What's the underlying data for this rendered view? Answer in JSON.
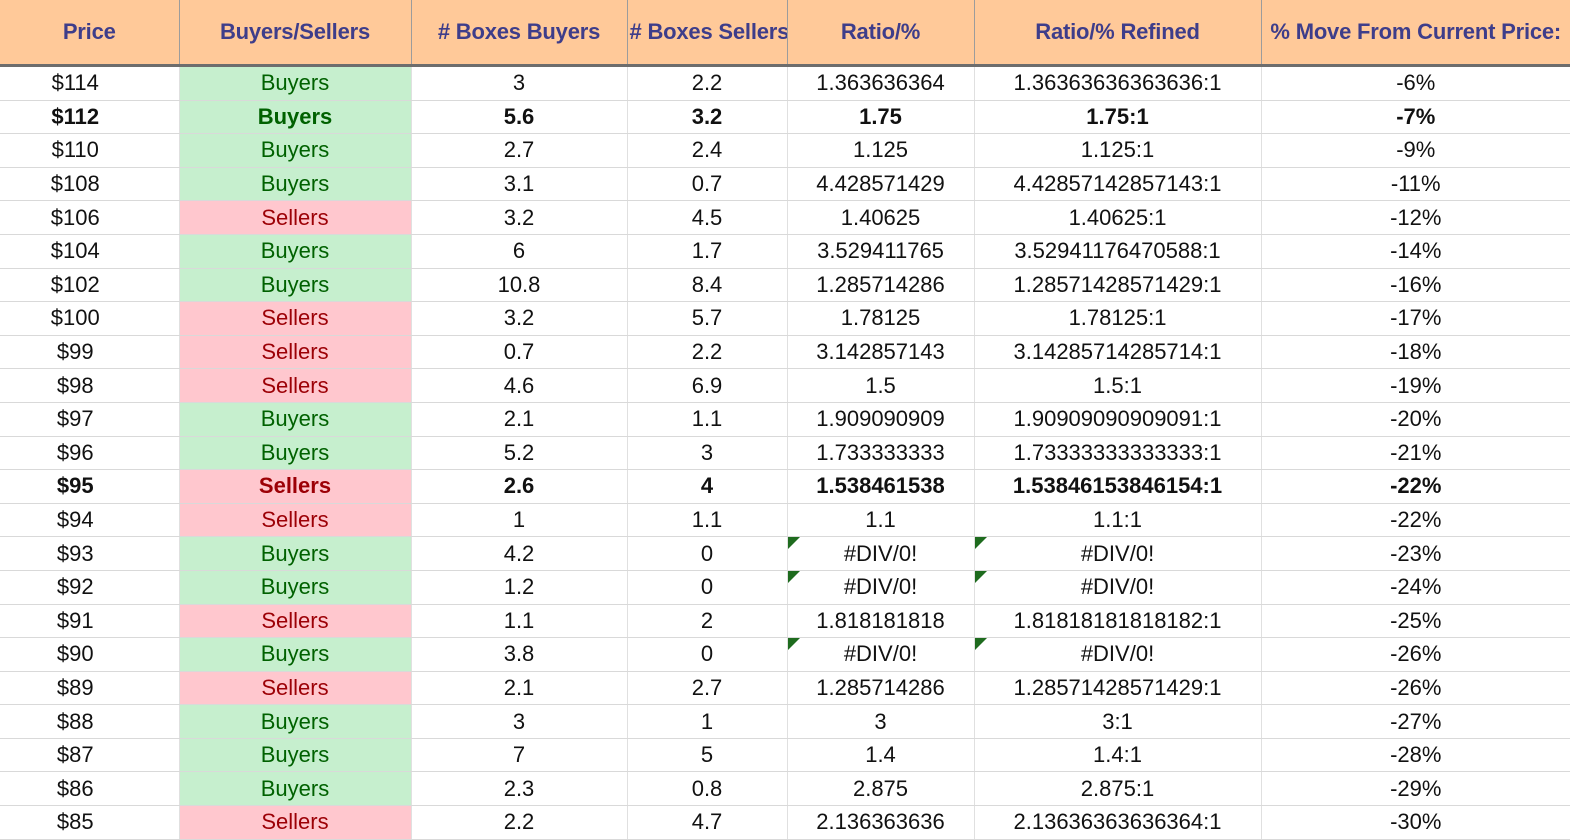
{
  "headers": [
    "Price",
    "Buyers/Sellers",
    "# Boxes Buyers",
    "# Boxes Sellers",
    "Ratio/%",
    "Ratio/% Refined",
    "% Move From Current Price:"
  ],
  "colors": {
    "header_bg": "#ffc999",
    "header_text": "#3e3d8a",
    "buyers_bg": "#c6efce",
    "buyers_text": "#006100",
    "sellers_bg": "#ffc7ce",
    "sellers_text": "#9c0006",
    "error_flag": "#1e6b1e"
  },
  "rows": [
    {
      "price": "$114",
      "side": "Buyers",
      "boxes_buyers": "3",
      "boxes_sellers": "2.2",
      "ratio": "1.363636364",
      "ratio_refined": "1.36363636363636:1",
      "move": "-6%",
      "bold": false,
      "error": false
    },
    {
      "price": "$112",
      "side": "Buyers",
      "boxes_buyers": "5.6",
      "boxes_sellers": "3.2",
      "ratio": "1.75",
      "ratio_refined": "1.75:1",
      "move": "-7%",
      "bold": true,
      "error": false
    },
    {
      "price": "$110",
      "side": "Buyers",
      "boxes_buyers": "2.7",
      "boxes_sellers": "2.4",
      "ratio": "1.125",
      "ratio_refined": "1.125:1",
      "move": "-9%",
      "bold": false,
      "error": false
    },
    {
      "price": "$108",
      "side": "Buyers",
      "boxes_buyers": "3.1",
      "boxes_sellers": "0.7",
      "ratio": "4.428571429",
      "ratio_refined": "4.42857142857143:1",
      "move": "-11%",
      "bold": false,
      "error": false
    },
    {
      "price": "$106",
      "side": "Sellers",
      "boxes_buyers": "3.2",
      "boxes_sellers": "4.5",
      "ratio": "1.40625",
      "ratio_refined": "1.40625:1",
      "move": "-12%",
      "bold": false,
      "error": false
    },
    {
      "price": "$104",
      "side": "Buyers",
      "boxes_buyers": "6",
      "boxes_sellers": "1.7",
      "ratio": "3.529411765",
      "ratio_refined": "3.52941176470588:1",
      "move": "-14%",
      "bold": false,
      "error": false
    },
    {
      "price": "$102",
      "side": "Buyers",
      "boxes_buyers": "10.8",
      "boxes_sellers": "8.4",
      "ratio": "1.285714286",
      "ratio_refined": "1.28571428571429:1",
      "move": "-16%",
      "bold": false,
      "error": false
    },
    {
      "price": "$100",
      "side": "Sellers",
      "boxes_buyers": "3.2",
      "boxes_sellers": "5.7",
      "ratio": "1.78125",
      "ratio_refined": "1.78125:1",
      "move": "-17%",
      "bold": false,
      "error": false
    },
    {
      "price": "$99",
      "side": "Sellers",
      "boxes_buyers": "0.7",
      "boxes_sellers": "2.2",
      "ratio": "3.142857143",
      "ratio_refined": "3.14285714285714:1",
      "move": "-18%",
      "bold": false,
      "error": false
    },
    {
      "price": "$98",
      "side": "Sellers",
      "boxes_buyers": "4.6",
      "boxes_sellers": "6.9",
      "ratio": "1.5",
      "ratio_refined": "1.5:1",
      "move": "-19%",
      "bold": false,
      "error": false
    },
    {
      "price": "$97",
      "side": "Buyers",
      "boxes_buyers": "2.1",
      "boxes_sellers": "1.1",
      "ratio": "1.909090909",
      "ratio_refined": "1.90909090909091:1",
      "move": "-20%",
      "bold": false,
      "error": false
    },
    {
      "price": "$96",
      "side": "Buyers",
      "boxes_buyers": "5.2",
      "boxes_sellers": "3",
      "ratio": "1.733333333",
      "ratio_refined": "1.73333333333333:1",
      "move": "-21%",
      "bold": false,
      "error": false
    },
    {
      "price": "$95",
      "side": "Sellers",
      "boxes_buyers": "2.6",
      "boxes_sellers": "4",
      "ratio": "1.538461538",
      "ratio_refined": "1.53846153846154:1",
      "move": "-22%",
      "bold": true,
      "error": false
    },
    {
      "price": "$94",
      "side": "Sellers",
      "boxes_buyers": "1",
      "boxes_sellers": "1.1",
      "ratio": "1.1",
      "ratio_refined": "1.1:1",
      "move": "-22%",
      "bold": false,
      "error": false
    },
    {
      "price": "$93",
      "side": "Buyers",
      "boxes_buyers": "4.2",
      "boxes_sellers": "0",
      "ratio": "#DIV/0!",
      "ratio_refined": "#DIV/0!",
      "move": "-23%",
      "bold": false,
      "error": true
    },
    {
      "price": "$92",
      "side": "Buyers",
      "boxes_buyers": "1.2",
      "boxes_sellers": "0",
      "ratio": "#DIV/0!",
      "ratio_refined": "#DIV/0!",
      "move": "-24%",
      "bold": false,
      "error": true
    },
    {
      "price": "$91",
      "side": "Sellers",
      "boxes_buyers": "1.1",
      "boxes_sellers": "2",
      "ratio": "1.818181818",
      "ratio_refined": "1.81818181818182:1",
      "move": "-25%",
      "bold": false,
      "error": false
    },
    {
      "price": "$90",
      "side": "Buyers",
      "boxes_buyers": "3.8",
      "boxes_sellers": "0",
      "ratio": "#DIV/0!",
      "ratio_refined": "#DIV/0!",
      "move": "-26%",
      "bold": false,
      "error": true
    },
    {
      "price": "$89",
      "side": "Sellers",
      "boxes_buyers": "2.1",
      "boxes_sellers": "2.7",
      "ratio": "1.285714286",
      "ratio_refined": "1.28571428571429:1",
      "move": "-26%",
      "bold": false,
      "error": false
    },
    {
      "price": "$88",
      "side": "Buyers",
      "boxes_buyers": "3",
      "boxes_sellers": "1",
      "ratio": "3",
      "ratio_refined": "3:1",
      "move": "-27%",
      "bold": false,
      "error": false
    },
    {
      "price": "$87",
      "side": "Buyers",
      "boxes_buyers": "7",
      "boxes_sellers": "5",
      "ratio": "1.4",
      "ratio_refined": "1.4:1",
      "move": "-28%",
      "bold": false,
      "error": false
    },
    {
      "price": "$86",
      "side": "Buyers",
      "boxes_buyers": "2.3",
      "boxes_sellers": "0.8",
      "ratio": "2.875",
      "ratio_refined": "2.875:1",
      "move": "-29%",
      "bold": false,
      "error": false
    },
    {
      "price": "$85",
      "side": "Sellers",
      "boxes_buyers": "2.2",
      "boxes_sellers": "4.7",
      "ratio": "2.136363636",
      "ratio_refined": "2.13636363636364:1",
      "move": "-30%",
      "bold": false,
      "error": false
    }
  ]
}
